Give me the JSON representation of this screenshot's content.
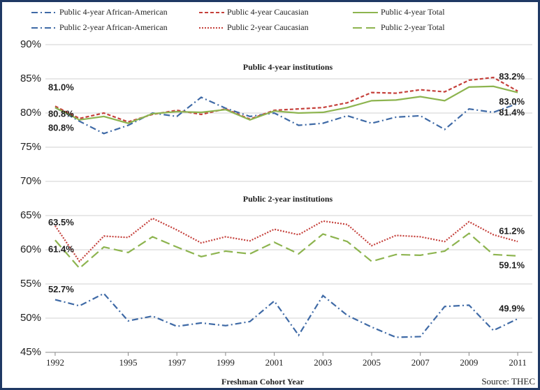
{
  "chart_data": {
    "type": "line",
    "x": [
      1992,
      1993,
      1994,
      1995,
      1996,
      1997,
      1998,
      1999,
      2000,
      2001,
      2002,
      2003,
      2004,
      2005,
      2006,
      2007,
      2008,
      2009,
      2010,
      2011
    ],
    "xlim": [
      1991.6,
      2011.6
    ],
    "xticks": [
      1992,
      1995,
      1997,
      1999,
      2001,
      2003,
      2005,
      2007,
      2009,
      2011
    ],
    "ylim": [
      45,
      90
    ],
    "yticks": [
      {
        "value": 45,
        "label": "45%"
      },
      {
        "value": 50,
        "label": "50%"
      },
      {
        "value": 55,
        "label": "55%"
      },
      {
        "value": 60,
        "label": "60%"
      },
      {
        "value": 65,
        "label": "65%"
      },
      {
        "value": 70,
        "label": "70%"
      },
      {
        "value": 75,
        "label": "75%"
      },
      {
        "value": 80,
        "label": "80%"
      },
      {
        "value": 85,
        "label": "85%"
      },
      {
        "value": 90,
        "label": "90%"
      }
    ],
    "grid": true,
    "xlabel": "Freshman Cohort Year",
    "source": "Source: THEC",
    "annotations": [
      "Public 4-year institutions",
      "Public 2-year institutions"
    ],
    "series": [
      {
        "name": "Public 4-year African-American",
        "color": "#3f6aa6",
        "style": "dash-dot",
        "values": [
          80.8,
          78.8,
          77.0,
          78.2,
          80.0,
          79.5,
          82.3,
          80.7,
          79.5,
          80.0,
          78.2,
          78.5,
          79.6,
          78.5,
          79.4,
          79.6,
          77.6,
          80.6,
          80.1,
          81.4
        ],
        "value_labels": [
          "80.8%",
          null,
          null,
          null,
          null,
          null,
          null,
          null,
          null,
          null,
          null,
          null,
          null,
          null,
          null,
          null,
          null,
          null,
          null,
          "81.4%"
        ]
      },
      {
        "name": "Public 4-year Caucasian",
        "color": "#c5403b",
        "style": "dashed",
        "values": [
          81.0,
          79.2,
          80.0,
          78.7,
          79.8,
          80.4,
          79.8,
          80.6,
          79.1,
          80.4,
          80.6,
          80.8,
          81.5,
          83.0,
          82.9,
          83.4,
          83.1,
          84.8,
          85.2,
          83.2
        ],
        "value_labels": [
          "81.0%",
          null,
          null,
          null,
          null,
          null,
          null,
          null,
          null,
          null,
          null,
          null,
          null,
          null,
          null,
          null,
          null,
          null,
          null,
          "83.2%"
        ]
      },
      {
        "name": "Public 4-year Total",
        "color": "#8db44f",
        "style": "solid",
        "values": [
          80.8,
          79.0,
          79.5,
          78.5,
          79.9,
          80.2,
          80.1,
          80.5,
          79.0,
          80.3,
          80.0,
          80.1,
          80.8,
          81.8,
          81.9,
          82.4,
          81.8,
          83.8,
          83.9,
          83.0
        ],
        "value_labels": [
          "80.8%",
          null,
          null,
          null,
          null,
          null,
          null,
          null,
          null,
          null,
          null,
          null,
          null,
          null,
          null,
          null,
          null,
          null,
          null,
          "83.0%"
        ]
      },
      {
        "name": "Public 2-year African-American",
        "color": "#3f6aa6",
        "style": "dash-dot",
        "values": [
          52.7,
          51.8,
          53.6,
          49.6,
          50.3,
          48.8,
          49.3,
          48.9,
          49.5,
          52.5,
          47.5,
          53.3,
          50.4,
          48.7,
          47.2,
          47.3,
          51.7,
          51.9,
          48.2,
          49.9
        ],
        "value_labels": [
          "52.7%",
          null,
          null,
          null,
          null,
          null,
          null,
          null,
          null,
          null,
          null,
          null,
          null,
          null,
          null,
          null,
          null,
          null,
          null,
          "49.9%"
        ]
      },
      {
        "name": "Public 2-year Caucasian",
        "color": "#c5403b",
        "style": "dotted",
        "values": [
          63.5,
          58.3,
          62.0,
          61.8,
          64.6,
          62.9,
          61.0,
          61.9,
          61.3,
          63.0,
          62.2,
          64.2,
          63.7,
          60.6,
          62.1,
          61.9,
          61.2,
          64.1,
          62.2,
          61.2
        ],
        "value_labels": [
          "63.5%",
          null,
          null,
          null,
          null,
          null,
          null,
          null,
          null,
          null,
          null,
          null,
          null,
          null,
          null,
          null,
          null,
          null,
          null,
          "61.2%"
        ]
      },
      {
        "name": "Public 2-year Total",
        "color": "#8db44f",
        "style": "long-dash",
        "values": [
          61.4,
          57.3,
          60.4,
          59.6,
          61.9,
          60.4,
          59.0,
          59.8,
          59.4,
          61.1,
          59.4,
          62.3,
          61.2,
          58.3,
          59.3,
          59.2,
          59.8,
          62.4,
          59.3,
          59.1
        ],
        "value_labels": [
          "61.4%",
          null,
          null,
          null,
          null,
          null,
          null,
          null,
          null,
          null,
          null,
          null,
          null,
          null,
          null,
          null,
          null,
          null,
          null,
          "59.1%"
        ]
      }
    ]
  }
}
